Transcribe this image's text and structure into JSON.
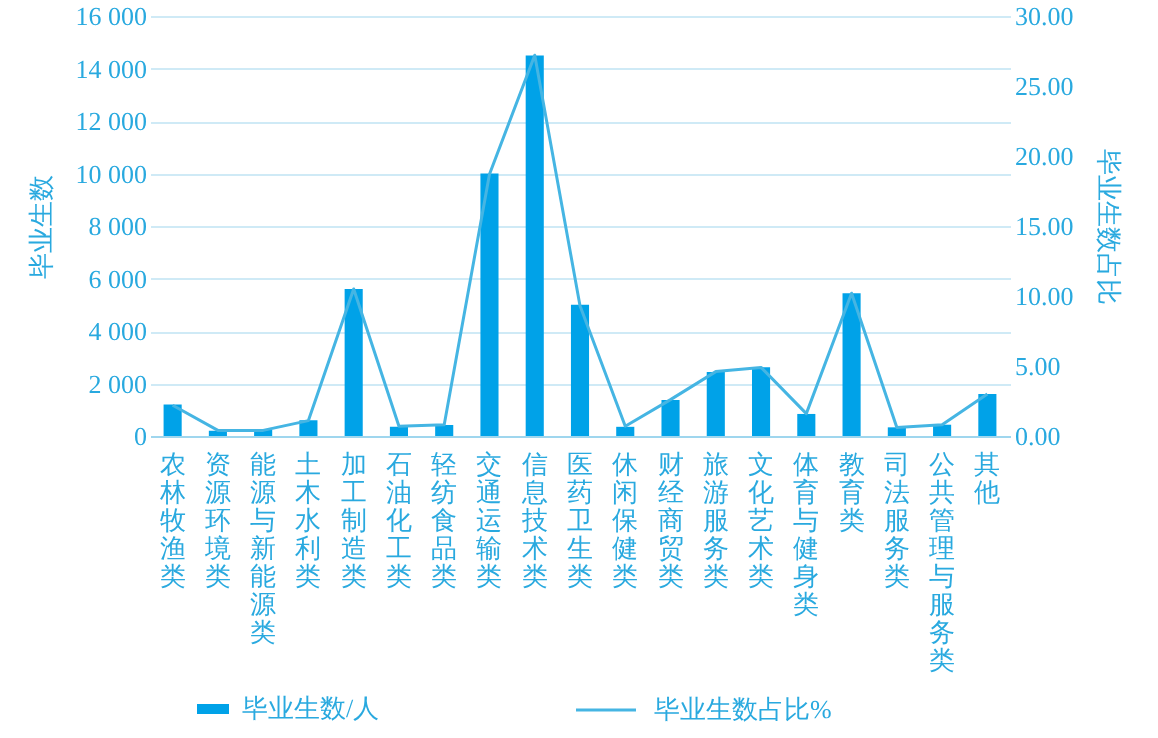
{
  "chart_data": {
    "type": "bar",
    "xlabel": null,
    "ylabel": "毕业生数",
    "y2label": "毕业生数占比",
    "categories": [
      "农林牧渔类",
      "资源环境类",
      "能源与新能源类",
      "土木水利类",
      "加工制造类",
      "石油化工类",
      "轻纺食品类",
      "交通运输类",
      "信息技术类",
      "医药卫生类",
      "休闲保健类",
      "财经商贸类",
      "旅游服务类",
      "文化艺术类",
      "体育与健身类",
      "教育类",
      "司法服务类",
      "公共管理与服务类",
      "其他"
    ],
    "series": [
      {
        "name": "毕业生数/人",
        "color": "#00a2e8",
        "values": [
          1200,
          200,
          230,
          600,
          5600,
          350,
          420,
          10000,
          14500,
          5000,
          350,
          1370,
          2440,
          2620,
          840,
          5440,
          330,
          430,
          1600
        ]
      },
      {
        "name": "毕业生数占比%",
        "type": "line",
        "axis": "y2",
        "color": "#45b5e3",
        "values": [
          2.2,
          0.4,
          0.4,
          1.1,
          10.5,
          0.7,
          0.8,
          18.7,
          27.2,
          9.3,
          0.7,
          2.6,
          4.6,
          4.9,
          1.6,
          10.2,
          0.6,
          0.8,
          3.0
        ]
      }
    ],
    "ylim": [
      0,
      16000
    ],
    "yticks": [
      {
        "value": 0,
        "label": "0"
      },
      {
        "value": 2000,
        "label": "2 000"
      },
      {
        "value": 4000,
        "label": "4 000"
      },
      {
        "value": 6000,
        "label": "6 000"
      },
      {
        "value": 8000,
        "label": "8 000"
      },
      {
        "value": 10000,
        "label": "10 000"
      },
      {
        "value": 12000,
        "label": "12 000"
      },
      {
        "value": 14000,
        "label": "14 000"
      },
      {
        "value": 16000,
        "label": "16 000"
      }
    ],
    "y2lim": [
      0,
      30
    ],
    "y2ticks": [
      {
        "value": 0,
        "label": "0.00"
      },
      {
        "value": 5,
        "label": "5.00"
      },
      {
        "value": 10,
        "label": "10.00"
      },
      {
        "value": 15,
        "label": "15.00"
      },
      {
        "value": 20,
        "label": "20.00"
      },
      {
        "value": 25,
        "label": "25.00"
      },
      {
        "value": 30,
        "label": "30.00"
      }
    ],
    "grid": "y",
    "legend": "bottom",
    "marker": "none",
    "line_style": "solid"
  }
}
